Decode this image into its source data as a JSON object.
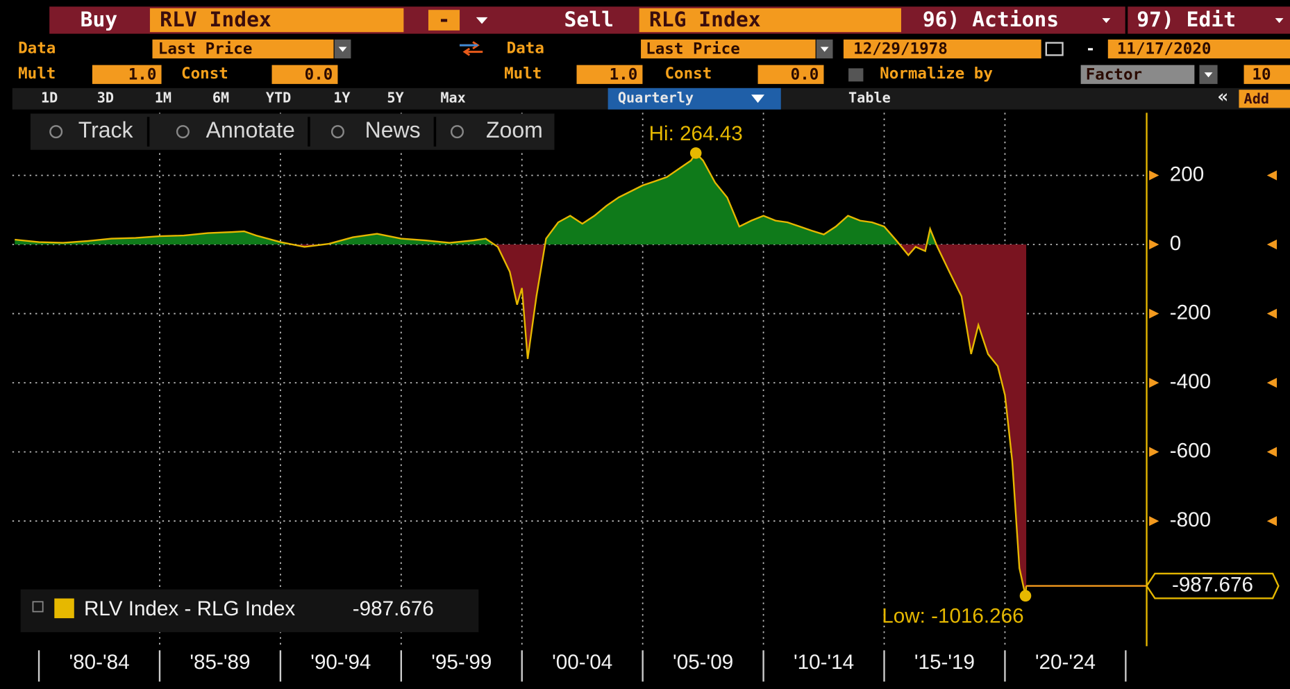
{
  "toolbar": {
    "buy_label": "Buy",
    "buy_security": "RLV Index",
    "operator": "-",
    "sell_label": "Sell",
    "sell_security": "RLG Index",
    "actions": "96) Actions",
    "edit": "97) Edit"
  },
  "data_row": {
    "buy_data_label": "Data",
    "buy_field": "Last Price",
    "sell_data_label": "Data",
    "sell_field": "Last Price",
    "start_date": "12/29/1978",
    "date_separator": "-",
    "end_date": "11/17/2020"
  },
  "mult_row": {
    "buy_mult_label": "Mult",
    "buy_mult": "1.0",
    "buy_const_label": "Const",
    "buy_const": "0.0",
    "sell_mult_label": "Mult",
    "sell_mult": "1.0",
    "sell_const_label": "Const",
    "sell_const": "0.0",
    "normalize_label": "Normalize by",
    "normalize_mode": "Factor",
    "normalize_value": "10"
  },
  "period_tabs": [
    "1D",
    "3D",
    "1M",
    "6M",
    "YTD",
    "1Y",
    "5Y",
    "Max"
  ],
  "frequency": "Quarterly",
  "table_tab": "Table",
  "add_button": "Add",
  "tools": [
    "Track",
    "Annotate",
    "News",
    "Zoom"
  ],
  "chart_data": {
    "type": "area",
    "hi_label": "Hi: 264.43",
    "low_label": "Low: -1016.266",
    "categories": [
      "'80-'84",
      "'85-'89",
      "'90-'94",
      "'95-'99",
      "'00-'04",
      "'05-'09",
      "'10-'14",
      "'15-'19",
      "'20-'24"
    ],
    "xlim": [
      1978.9,
      2025.8
    ],
    "xticks": [
      1980,
      1985,
      1990,
      1995,
      2000,
      2005,
      2010,
      2015,
      2020,
      2025
    ],
    "ylim": [
      -1162,
      381
    ],
    "yticks": [
      200,
      0,
      -200,
      -400,
      -600,
      -800
    ],
    "grid": true,
    "series": [
      {
        "name": "RLV Index - RLG Index",
        "color": "#e6b800",
        "positive_color": "#0f7a1a",
        "negative_color": "#7a1420",
        "value_labels": {
          "last": "-987.676"
        },
        "x": [
          1979,
          1980,
          1981,
          1982,
          1983,
          1984,
          1985,
          1986,
          1987,
          1988,
          1988.5,
          1989,
          1990,
          1991,
          1992,
          1993,
          1994,
          1995,
          1996,
          1997,
          1998,
          1998.5,
          1999,
          1999.5,
          1999.8,
          2000,
          2000.24,
          2000.6,
          2001,
          2001.5,
          2002,
          2002.5,
          2003,
          2003.5,
          2004,
          2005,
          2005.5,
          2006,
          2006.5,
          2007,
          2007.2,
          2007.5,
          2008,
          2008.5,
          2009,
          2009.5,
          2010,
          2010.5,
          2011,
          2011.5,
          2012,
          2012.5,
          2013,
          2013.5,
          2014,
          2014.5,
          2015,
          2015.5,
          2016,
          2016.3,
          2016.7,
          2016.9,
          2017.2,
          2017.7,
          2018.2,
          2018.6,
          2018.9,
          2019.3,
          2019.7,
          2020,
          2020.3,
          2020.6,
          2020.85,
          2020.88
        ],
        "values": [
          14,
          7,
          5,
          10,
          17,
          19,
          24,
          26,
          33,
          36,
          38,
          26,
          7,
          -7,
          2,
          21,
          31,
          17,
          12,
          5,
          12,
          17,
          -7,
          -79,
          -174,
          -126,
          -331,
          -150,
          17,
          64,
          83,
          60,
          83,
          112,
          136,
          171,
          183,
          195,
          219,
          243,
          264.43,
          243,
          179,
          136,
          52,
          69,
          83,
          69,
          64,
          52,
          40,
          29,
          52,
          83,
          69,
          64,
          52,
          12,
          -31,
          -7,
          -19,
          45,
          -7,
          -79,
          -150,
          -317,
          -233,
          -317,
          -352,
          -436,
          -626,
          -936,
          -1016.266,
          -987.676
        ]
      }
    ]
  }
}
